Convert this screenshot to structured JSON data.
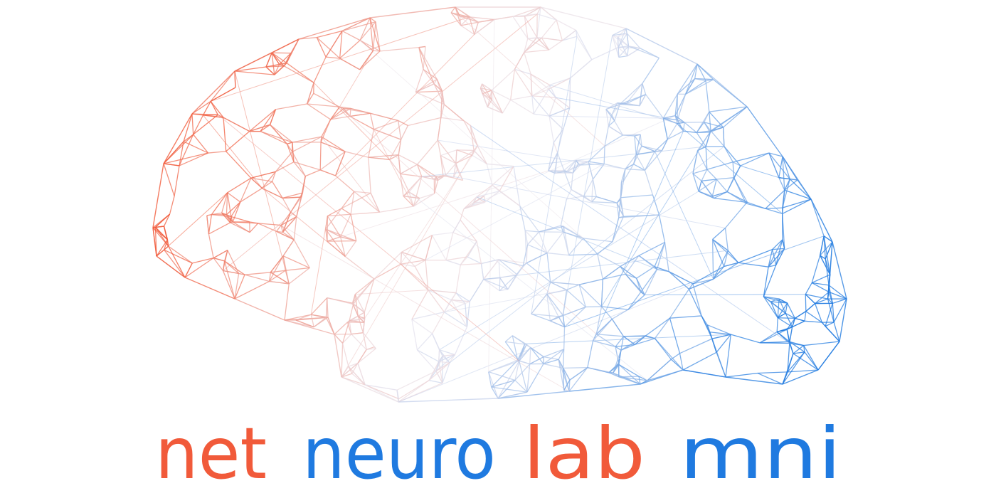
{
  "logo": {
    "words": [
      {
        "text": "net",
        "color": "#f15a3a"
      },
      {
        "text": "neuro",
        "color": "#1f7ae0"
      },
      {
        "text": "lab",
        "color": "#f15a3a"
      },
      {
        "text": "mni",
        "color": "#1f7ae0"
      }
    ]
  }
}
